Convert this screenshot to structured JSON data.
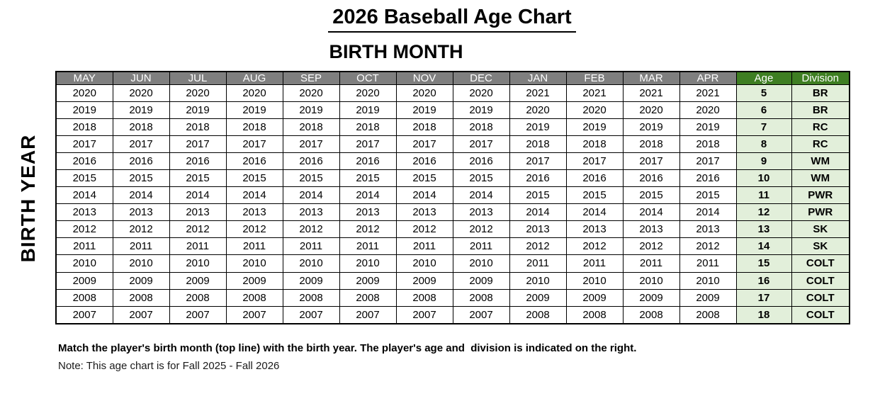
{
  "title": "2026 Baseball Age Chart",
  "subtitle": "BIRTH MONTH",
  "side_label": "BIRTH YEAR",
  "table": {
    "month_headers": [
      "MAY",
      "JUN",
      "JUL",
      "AUG",
      "SEP",
      "OCT",
      "NOV",
      "DEC",
      "JAN",
      "FEB",
      "MAR",
      "APR"
    ],
    "age_header": "Age",
    "division_header": "Division",
    "rows": [
      {
        "months": [
          "2020",
          "2020",
          "2020",
          "2020",
          "2020",
          "2020",
          "2020",
          "2020",
          "2021",
          "2021",
          "2021",
          "2021"
        ],
        "age": "5",
        "division": "BR"
      },
      {
        "months": [
          "2019",
          "2019",
          "2019",
          "2019",
          "2019",
          "2019",
          "2019",
          "2019",
          "2020",
          "2020",
          "2020",
          "2020"
        ],
        "age": "6",
        "division": "BR"
      },
      {
        "months": [
          "2018",
          "2018",
          "2018",
          "2018",
          "2018",
          "2018",
          "2018",
          "2018",
          "2019",
          "2019",
          "2019",
          "2019"
        ],
        "age": "7",
        "division": "RC"
      },
      {
        "months": [
          "2017",
          "2017",
          "2017",
          "2017",
          "2017",
          "2017",
          "2017",
          "2017",
          "2018",
          "2018",
          "2018",
          "2018"
        ],
        "age": "8",
        "division": "RC"
      },
      {
        "months": [
          "2016",
          "2016",
          "2016",
          "2016",
          "2016",
          "2016",
          "2016",
          "2016",
          "2017",
          "2017",
          "2017",
          "2017"
        ],
        "age": "9",
        "division": "WM"
      },
      {
        "months": [
          "2015",
          "2015",
          "2015",
          "2015",
          "2015",
          "2015",
          "2015",
          "2015",
          "2016",
          "2016",
          "2016",
          "2016"
        ],
        "age": "10",
        "division": "WM"
      },
      {
        "months": [
          "2014",
          "2014",
          "2014",
          "2014",
          "2014",
          "2014",
          "2014",
          "2014",
          "2015",
          "2015",
          "2015",
          "2015"
        ],
        "age": "11",
        "division": "PWR"
      },
      {
        "months": [
          "2013",
          "2013",
          "2013",
          "2013",
          "2013",
          "2013",
          "2013",
          "2013",
          "2014",
          "2014",
          "2014",
          "2014"
        ],
        "age": "12",
        "division": "PWR"
      },
      {
        "months": [
          "2012",
          "2012",
          "2012",
          "2012",
          "2012",
          "2012",
          "2012",
          "2012",
          "2013",
          "2013",
          "2013",
          "2013"
        ],
        "age": "13",
        "division": "SK"
      },
      {
        "months": [
          "2011",
          "2011",
          "2011",
          "2011",
          "2011",
          "2011",
          "2011",
          "2011",
          "2012",
          "2012",
          "2012",
          "2012"
        ],
        "age": "14",
        "division": "SK"
      },
      {
        "months": [
          "2010",
          "2010",
          "2010",
          "2010",
          "2010",
          "2010",
          "2010",
          "2010",
          "2011",
          "2011",
          "2011",
          "2011"
        ],
        "age": "15",
        "division": "COLT"
      },
      {
        "months": [
          "2009",
          "2009",
          "2009",
          "2009",
          "2009",
          "2009",
          "2009",
          "2009",
          "2010",
          "2010",
          "2010",
          "2010"
        ],
        "age": "16",
        "division": "COLT"
      },
      {
        "months": [
          "2008",
          "2008",
          "2008",
          "2008",
          "2008",
          "2008",
          "2008",
          "2008",
          "2009",
          "2009",
          "2009",
          "2009"
        ],
        "age": "17",
        "division": "COLT"
      },
      {
        "months": [
          "2007",
          "2007",
          "2007",
          "2007",
          "2007",
          "2007",
          "2007",
          "2007",
          "2008",
          "2008",
          "2008",
          "2008"
        ],
        "age": "18",
        "division": "COLT"
      }
    ]
  },
  "footer": {
    "instruction": "Match the player's birth month (top line) with the birth year. The player's age and  division is indicated on the right.",
    "note": "Note: This age chart is for Fall 2025 - Fall 2026"
  },
  "colors": {
    "header_gray": "#7f7f7f",
    "header_green": "#3e7e22",
    "cell_green": "#e2efda",
    "border": "#000000"
  }
}
